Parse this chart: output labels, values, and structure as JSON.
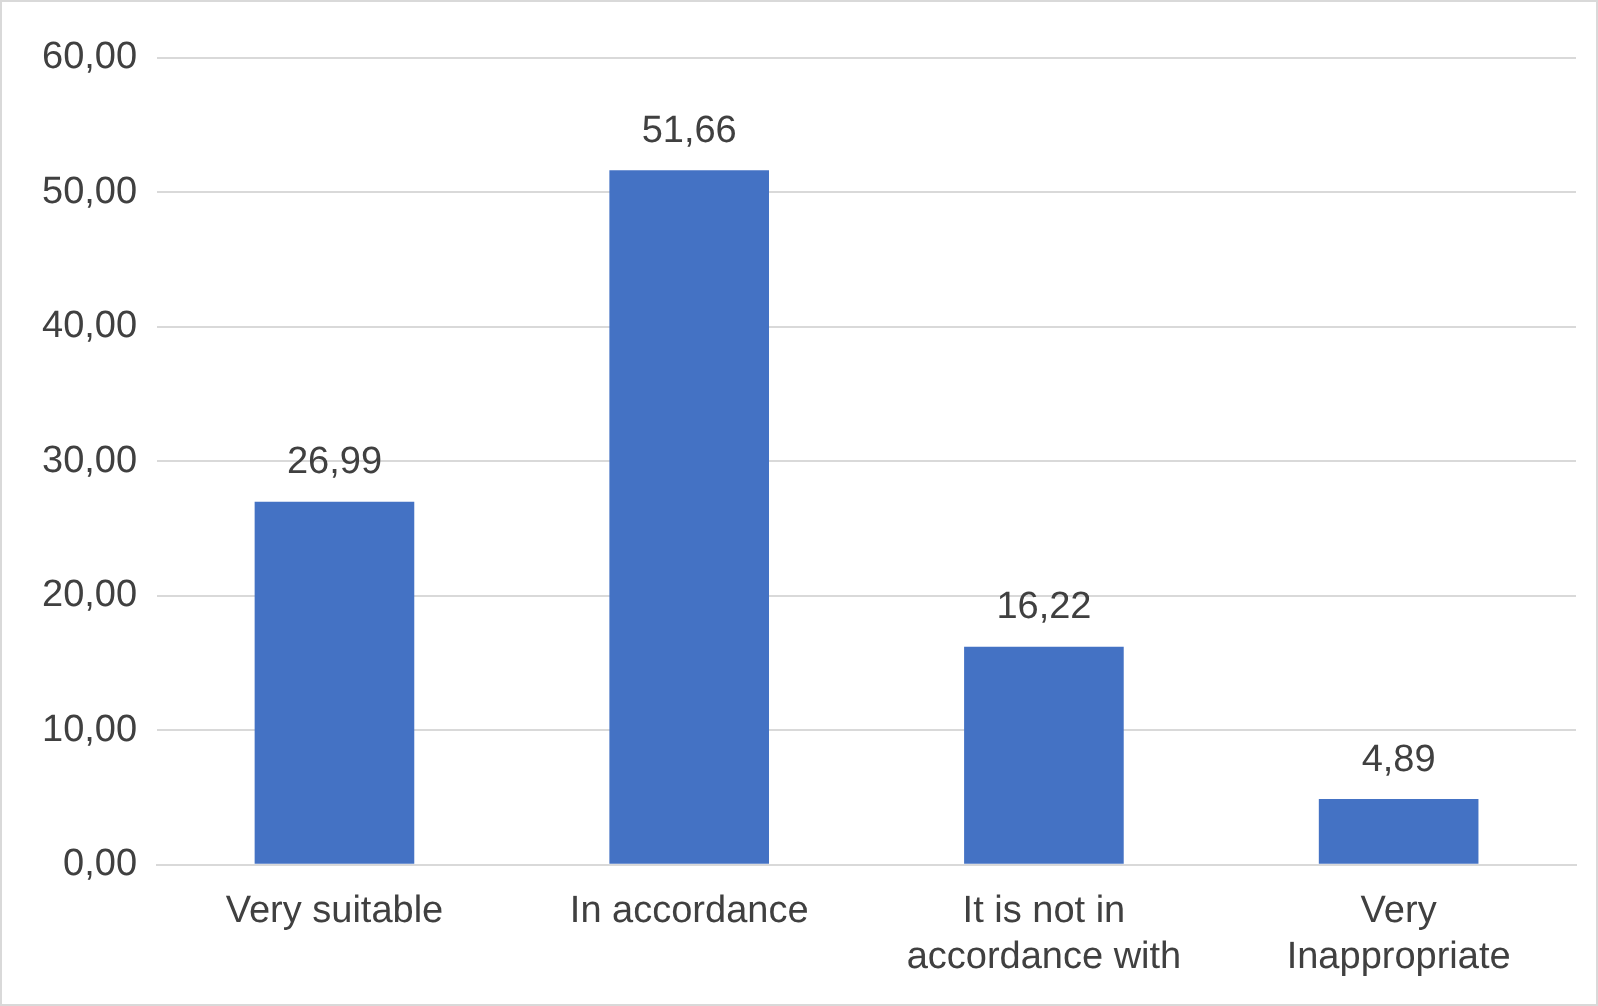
{
  "chart_data": {
    "type": "bar",
    "categories": [
      "Very suitable",
      "In accordance",
      "It is not in accordance with",
      "Very Inappropriate"
    ],
    "values": [
      26.99,
      51.66,
      16.22,
      4.89
    ],
    "color": "#4472c4",
    "value_labels": [
      "26,99",
      "51,66",
      "16,22",
      "4,89"
    ],
    "ylim": [
      0,
      60
    ],
    "yticks": [
      {
        "value": 0,
        "label": "0,00"
      },
      {
        "value": 10,
        "label": "10,00"
      },
      {
        "value": 20,
        "label": "20,00"
      },
      {
        "value": 30,
        "label": "30,00"
      },
      {
        "value": 40,
        "label": "40,00"
      },
      {
        "value": 50,
        "label": "50,00"
      },
      {
        "value": 60,
        "label": "60,00"
      }
    ],
    "grid": "y",
    "legend": false
  }
}
